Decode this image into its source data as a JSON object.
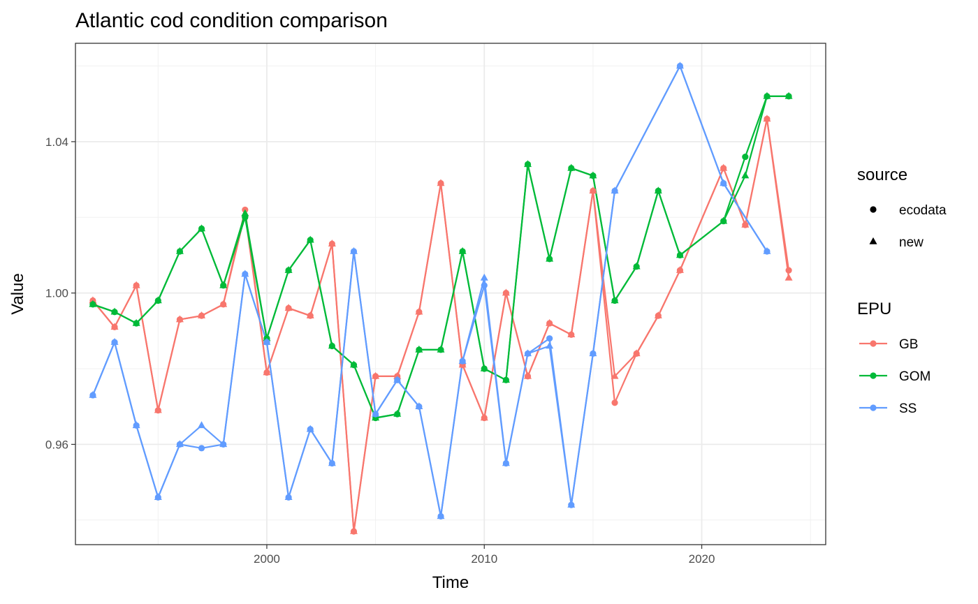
{
  "chart_data": {
    "type": "line",
    "title": "Atlantic cod condition comparison",
    "xlabel": "Time",
    "ylabel": "Value",
    "xlim": [
      1991.2,
      2025.7
    ],
    "ylim": [
      0.9335,
      1.066
    ],
    "x_ticks": [
      2000,
      2010,
      2020
    ],
    "x_minor": [
      1995,
      2005,
      2015,
      2025
    ],
    "y_ticks": [
      0.96,
      1.0,
      1.04
    ],
    "y_tick_labels": [
      "0.96",
      "1.00",
      "1.04"
    ],
    "y_minor": [
      0.94,
      0.98,
      1.02,
      1.06
    ],
    "grid": true,
    "legend_position": "right",
    "legends": [
      {
        "title": "source",
        "entries": [
          {
            "label": "ecodata",
            "shape": "circle"
          },
          {
            "label": "new",
            "shape": "triangle"
          }
        ]
      },
      {
        "title": "EPU",
        "entries": [
          {
            "label": "GB",
            "color": "#F8766D"
          },
          {
            "label": "GOM",
            "color": "#00BA38"
          },
          {
            "label": "SS",
            "color": "#619CFF"
          }
        ]
      }
    ],
    "series": [
      {
        "name": "GB",
        "color": "#F8766D",
        "lines": [
          {
            "source": "ecodata",
            "x": [
              1992,
              1993,
              1994,
              1995,
              1996,
              1997,
              1998,
              1999,
              2000,
              2001,
              2002,
              2003,
              2004,
              2005,
              2006,
              2007,
              2008,
              2009,
              2010,
              2011,
              2012,
              2013,
              2014,
              2015,
              2016,
              2017,
              2018,
              2019,
              2021,
              2022,
              2023,
              2024
            ],
            "y": [
              0.998,
              0.991,
              1.002,
              0.969,
              0.993,
              0.994,
              0.997,
              1.022,
              0.979,
              0.996,
              0.994,
              1.013,
              0.937,
              0.978,
              0.978,
              0.995,
              1.029,
              0.981,
              0.967,
              1.0,
              0.978,
              0.992,
              0.989,
              1.027,
              0.971,
              0.984,
              0.994,
              1.006,
              1.033,
              1.018,
              1.046,
              1.006
            ]
          },
          {
            "source": "new",
            "x": [
              1992,
              1993,
              1994,
              1995,
              1996,
              1997,
              1998,
              1999,
              2000,
              2001,
              2002,
              2003,
              2004,
              2005,
              2006,
              2007,
              2008,
              2009,
              2010,
              2011,
              2012,
              2013,
              2014,
              2015,
              2016,
              2017,
              2018,
              2019,
              2021,
              2022,
              2023,
              2024
            ],
            "y": [
              0.998,
              0.991,
              1.002,
              0.969,
              0.993,
              0.994,
              0.997,
              1.021,
              0.979,
              0.996,
              0.994,
              1.013,
              0.937,
              0.978,
              0.978,
              0.995,
              1.029,
              0.981,
              0.967,
              1.0,
              0.978,
              0.992,
              0.989,
              1.027,
              0.978,
              0.984,
              0.994,
              1.006,
              1.033,
              1.018,
              1.046,
              1.004
            ]
          }
        ]
      },
      {
        "name": "GOM",
        "color": "#00BA38",
        "lines": [
          {
            "source": "ecodata",
            "x": [
              1992,
              1993,
              1994,
              1995,
              1996,
              1997,
              1998,
              1999,
              2000,
              2001,
              2002,
              2003,
              2004,
              2005,
              2006,
              2007,
              2008,
              2009,
              2010,
              2011,
              2012,
              2013,
              2014,
              2015,
              2016,
              2017,
              2018,
              2019,
              2021,
              2022,
              2023,
              2024
            ],
            "y": [
              0.997,
              0.995,
              0.992,
              0.998,
              1.011,
              1.017,
              1.002,
              1.02,
              0.988,
              1.006,
              1.014,
              0.986,
              0.981,
              0.967,
              0.968,
              0.985,
              0.985,
              1.011,
              0.98,
              0.977,
              1.034,
              1.009,
              1.033,
              1.031,
              0.998,
              1.007,
              1.027,
              1.01,
              1.019,
              1.036,
              1.052,
              1.052
            ]
          },
          {
            "source": "new",
            "x": [
              1992,
              1993,
              1994,
              1995,
              1996,
              1997,
              1998,
              1999,
              2000,
              2001,
              2002,
              2003,
              2004,
              2005,
              2006,
              2007,
              2008,
              2009,
              2010,
              2011,
              2012,
              2013,
              2014,
              2015,
              2016,
              2017,
              2018,
              2019,
              2021,
              2022,
              2023,
              2024
            ],
            "y": [
              0.997,
              0.995,
              0.992,
              0.998,
              1.011,
              1.017,
              1.002,
              1.021,
              0.988,
              1.006,
              1.014,
              0.986,
              0.981,
              0.967,
              0.968,
              0.985,
              0.985,
              1.011,
              0.98,
              0.977,
              1.034,
              1.009,
              1.033,
              1.031,
              0.998,
              1.007,
              1.027,
              1.01,
              1.019,
              1.031,
              1.052,
              1.052
            ]
          }
        ]
      },
      {
        "name": "SS",
        "color": "#619CFF",
        "lines": [
          {
            "source": "ecodata",
            "x": [
              1992,
              1993,
              1994,
              1995,
              1996,
              1997,
              1998,
              1999,
              2000,
              2001,
              2002,
              2003,
              2004,
              2005,
              2006,
              2007,
              2008,
              2009,
              2010,
              2011,
              2012,
              2013,
              2014,
              2015,
              2016,
              2019,
              2021,
              2023
            ],
            "y": [
              0.973,
              0.987,
              0.965,
              0.946,
              0.96,
              0.959,
              0.96,
              1.005,
              0.987,
              0.946,
              0.964,
              0.955,
              1.011,
              0.968,
              0.977,
              0.97,
              0.941,
              0.982,
              1.002,
              0.955,
              0.984,
              0.988,
              0.944,
              0.984,
              1.027,
              1.06,
              1.029,
              1.011
            ]
          },
          {
            "source": "new",
            "x": [
              1992,
              1993,
              1994,
              1995,
              1996,
              1997,
              1998,
              1999,
              2000,
              2001,
              2002,
              2003,
              2004,
              2005,
              2006,
              2007,
              2008,
              2009,
              2010,
              2011,
              2012,
              2013,
              2014,
              2015,
              2016,
              2019,
              2021,
              2023
            ],
            "y": [
              0.973,
              0.987,
              0.965,
              0.946,
              0.96,
              0.965,
              0.96,
              1.005,
              0.987,
              0.946,
              0.964,
              0.955,
              1.011,
              0.968,
              0.977,
              0.97,
              0.941,
              0.982,
              1.004,
              0.955,
              0.984,
              0.986,
              0.944,
              0.984,
              1.027,
              1.06,
              1.029,
              1.011
            ]
          }
        ]
      }
    ]
  }
}
